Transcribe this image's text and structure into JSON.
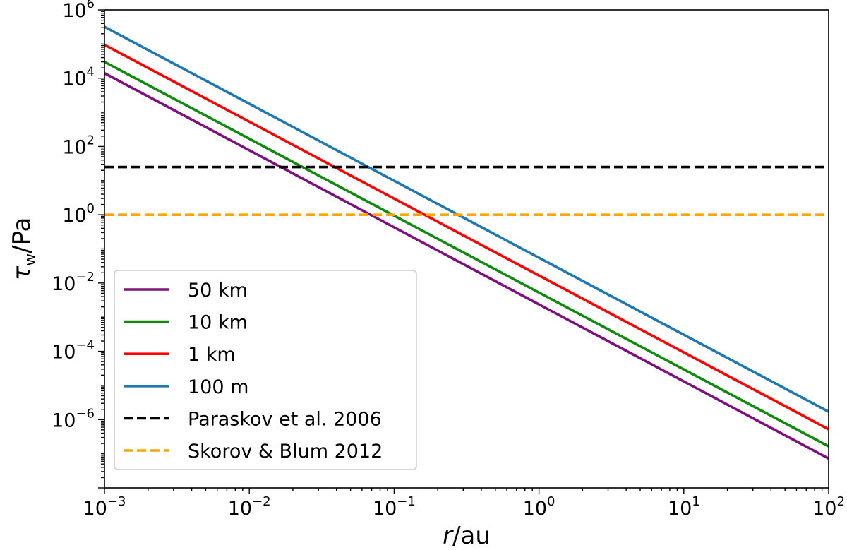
{
  "chart_data": {
    "type": "line",
    "title": "",
    "xlabel": {
      "var": "r",
      "unit": "/au"
    },
    "ylabel": {
      "var": "τ",
      "sub": "w",
      "unit": "/Pa"
    },
    "x_scale": "log",
    "y_scale": "log",
    "xlim": [
      0.001,
      100
    ],
    "ylim": [
      1e-08,
      1000000
    ],
    "x_ticks": [
      {
        "value": 0.001,
        "base": "10",
        "exp": "−3"
      },
      {
        "value": 0.01,
        "base": "10",
        "exp": "−2"
      },
      {
        "value": 0.1,
        "base": "10",
        "exp": "−1"
      },
      {
        "value": 1,
        "base": "10",
        "exp": "0"
      },
      {
        "value": 10,
        "base": "10",
        "exp": "1"
      },
      {
        "value": 100,
        "base": "10",
        "exp": "2"
      }
    ],
    "y_ticks": [
      {
        "value": 1e-06,
        "base": "10",
        "exp": "−6"
      },
      {
        "value": 0.0001,
        "base": "10",
        "exp": "−4"
      },
      {
        "value": 0.01,
        "base": "10",
        "exp": "−2"
      },
      {
        "value": 1,
        "base": "10",
        "exp": "0"
      },
      {
        "value": 100,
        "base": "10",
        "exp": "2"
      },
      {
        "value": 10000,
        "base": "10",
        "exp": "4"
      },
      {
        "value": 1000000,
        "base": "10",
        "exp": "6"
      }
    ],
    "grid": false,
    "legend_position": "lower-left",
    "series": [
      {
        "name": "50 km",
        "color": "#7f0f7f",
        "style": "solid",
        "x": [
          0.001,
          100
        ],
        "y": [
          14000,
          7.25e-08
        ]
      },
      {
        "name": "10 km",
        "color": "#0f8a0f",
        "style": "solid",
        "x": [
          0.001,
          100
        ],
        "y": [
          30000,
          1.65e-07
        ]
      },
      {
        "name": "1 km",
        "color": "#ff0000",
        "style": "solid",
        "x": [
          0.001,
          100
        ],
        "y": [
          95000,
          5.2e-07
        ]
      },
      {
        "name": "100 m",
        "color": "#1f77b4",
        "style": "solid",
        "x": [
          0.001,
          100
        ],
        "y": [
          320000,
          1.7e-06
        ]
      },
      {
        "name": "Paraskov et al. 2006",
        "color": "#000000",
        "style": "dashed",
        "x": [
          0.001,
          100
        ],
        "y": [
          25,
          25
        ]
      },
      {
        "name": "Skorov & Blum 2012",
        "color": "#ffa500",
        "style": "dashed",
        "x": [
          0.001,
          100
        ],
        "y": [
          1,
          1
        ]
      }
    ]
  }
}
